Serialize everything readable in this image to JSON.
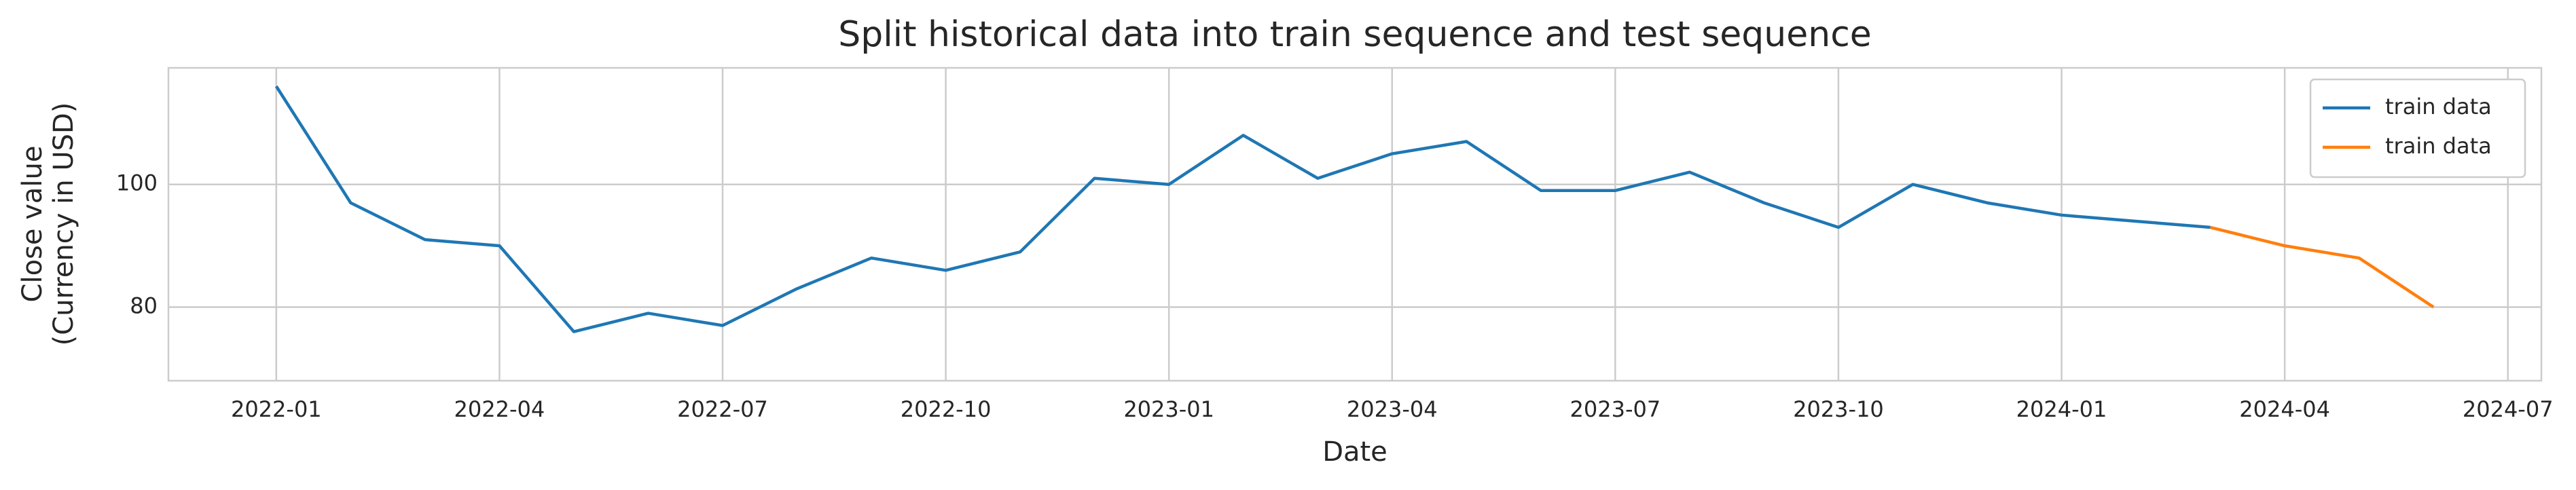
{
  "chart_data": {
    "type": "line",
    "title": "Split historical data into train sequence and test sequence",
    "xlabel": "Date",
    "ylabel": [
      "Close value",
      "(Currency in USD)"
    ],
    "xticks": [
      "2022-01",
      "2022-04",
      "2022-07",
      "2022-10",
      "2023-01",
      "2023-04",
      "2023-07",
      "2023-10",
      "2024-01",
      "2024-04",
      "2024-07"
    ],
    "ylim": [
      68,
      119
    ],
    "yticks": [
      80,
      100
    ],
    "grid": true,
    "legend": "upper right",
    "series": [
      {
        "name": "train data",
        "color": "#1f77b4",
        "x": [
          "2022-01",
          "2022-02",
          "2022-03",
          "2022-04",
          "2022-05",
          "2022-06",
          "2022-07",
          "2022-08",
          "2022-09",
          "2022-10",
          "2022-11",
          "2022-12",
          "2023-01",
          "2023-02",
          "2023-03",
          "2023-04",
          "2023-05",
          "2023-06",
          "2023-07",
          "2023-08",
          "2023-09",
          "2023-10",
          "2023-11",
          "2023-12",
          "2024-01",
          "2024-02",
          "2024-03"
        ],
        "values": [
          116,
          97,
          91,
          90,
          76,
          79,
          77,
          83,
          88,
          86,
          89,
          101,
          100,
          108,
          101,
          105,
          107,
          99,
          99,
          102,
          97,
          93,
          100,
          97,
          95,
          94,
          93
        ]
      },
      {
        "name": "train data",
        "color": "#ff7f0e",
        "x": [
          "2024-03",
          "2024-04",
          "2024-05",
          "2024-06"
        ],
        "values": [
          93,
          90,
          88,
          80
        ]
      }
    ]
  }
}
